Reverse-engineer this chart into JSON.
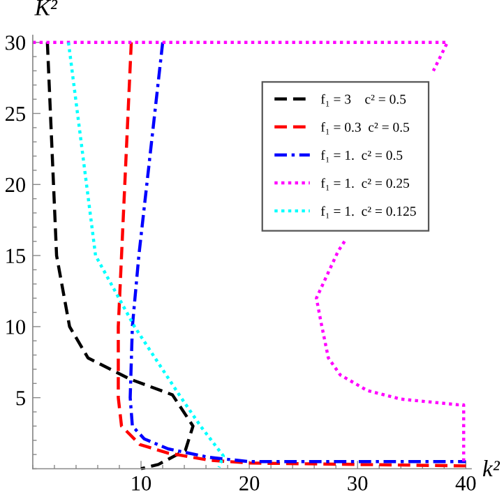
{
  "chart_data": {
    "type": "line",
    "xlabel": "k²",
    "ylabel": "K²",
    "xlim": [
      0,
      40.5
    ],
    "ylim": [
      0,
      30.5
    ],
    "xticks": [
      10,
      20,
      30,
      40
    ],
    "yticks": [
      5,
      10,
      15,
      20,
      25,
      30
    ],
    "grid": false,
    "legend": "top right",
    "series": [
      {
        "name": "f₁ = 3    c² = 0.5",
        "color": "#000000",
        "line_style": "dashed",
        "x": [
          1.35,
          2.2,
          3.4,
          5.1,
          9.0,
          12.9,
          14.8,
          14.1,
          11.6,
          10
        ],
        "values": [
          30,
          15,
          10,
          7.8,
          6.3,
          5.2,
          3.0,
          1.3,
          0.3,
          0
        ]
      },
      {
        "name": "f₁ = 0.3  c² = 0.5",
        "color": "#ff0000",
        "line_style": "dashed",
        "x": [
          9.1,
          8.2,
          7.9,
          7.9,
          8.2,
          9.9,
          12.5,
          16.3,
          20,
          30,
          40
        ],
        "values": [
          30,
          15,
          10,
          5,
          3,
          1.7,
          1.1,
          0.6,
          0.4,
          0.3,
          0.2
        ]
      },
      {
        "name": "f₁ = 1.  c² = 0.5",
        "color": "#0000ff",
        "line_style": "dashdot",
        "x": [
          12.0,
          9.8,
          9.2,
          9.0,
          9.2,
          10.3,
          12.5,
          16.3,
          20,
          30,
          40
        ],
        "values": [
          30,
          15,
          10,
          5,
          3,
          2.1,
          1.4,
          0.8,
          0.5,
          0.5,
          0.5
        ]
      },
      {
        "name": "f₁ = 1.  c² = 0.25",
        "color": "#ff00ff",
        "line_style": "dotted",
        "x": [
          0,
          38.3,
          37.0,
          33.0,
          28.8,
          28.2,
          26.2,
          26.6,
          27.3,
          28.4,
          30.9,
          34,
          39.3,
          39.8,
          39.8
        ],
        "values": [
          30,
          30,
          28.0,
          null,
          16.0,
          15.3,
          12.0,
          10.4,
          7.8,
          6.6,
          5.5,
          4.9,
          4.5,
          4.5,
          0.3
        ]
      },
      {
        "name": "f₁ = 1.  c² = 0.125",
        "color": "#00ffff",
        "line_style": "dotted",
        "x": [
          3.3,
          5.8,
          9.4,
          11.2,
          13.7,
          15.5,
          17.6,
          17.2
        ],
        "values": [
          30,
          15,
          10,
          7.9,
          5,
          3,
          0.9,
          0.1
        ]
      }
    ]
  }
}
